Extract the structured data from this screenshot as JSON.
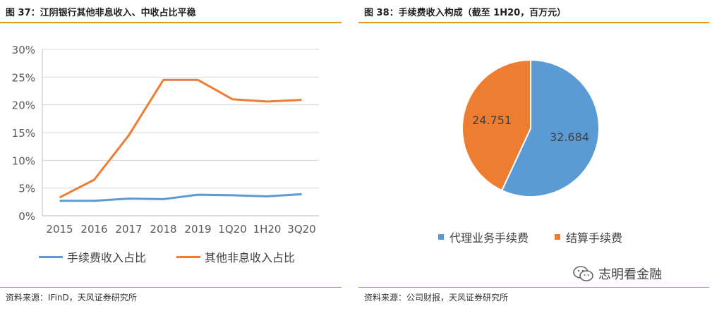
{
  "left": {
    "title": "图 37：江阴银行其他非息收入、中收占比平稳",
    "source": "资料来源：IFinD，天风证券研究所"
  },
  "right": {
    "title": "图 38：手续费收入构成（截至 1H20，百万元）",
    "source": "资料来源：公司财报，天风证券研究所"
  },
  "watermark": {
    "text": "志明看金融",
    "icon": "wechat-icon"
  },
  "colors": {
    "accent": "#e8912d",
    "blue": "#5b9bd5",
    "orange": "#ed7d31"
  },
  "chart_data": [
    {
      "type": "line",
      "categories": [
        "2015",
        "2016",
        "2017",
        "2018",
        "2019",
        "1Q20",
        "1H20",
        "3Q20"
      ],
      "y_ticks": [
        "0%",
        "5%",
        "10%",
        "15%",
        "20%",
        "25%",
        "30%"
      ],
      "ylim": [
        0,
        30
      ],
      "grid": true,
      "legend_position": "bottom",
      "series": [
        {
          "name": "手续费收入占比",
          "color": "#5b9bd5",
          "values": [
            2.7,
            2.7,
            3.1,
            3.0,
            3.8,
            3.7,
            3.5,
            3.9
          ]
        },
        {
          "name": "其他非息收入占比",
          "color": "#ed7d31",
          "values": [
            3.3,
            6.5,
            14.5,
            24.5,
            24.5,
            21.0,
            20.6,
            20.9
          ]
        }
      ]
    },
    {
      "type": "pie",
      "legend_position": "bottom",
      "slices": [
        {
          "name": "代理业务手续费",
          "value": 32.684,
          "label": "32.684",
          "color": "#5b9bd5"
        },
        {
          "name": "结算手续费",
          "value": 24.751,
          "label": "24.751",
          "color": "#ed7d31"
        }
      ]
    }
  ]
}
